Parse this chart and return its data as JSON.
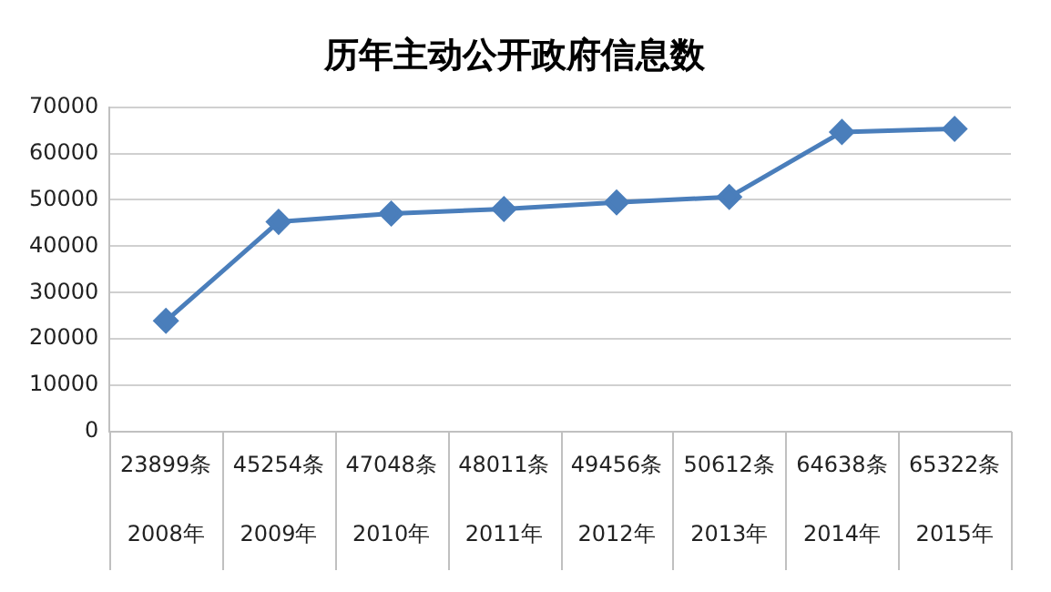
{
  "chart_data": {
    "type": "line",
    "title": "历年主动公开政府信息数",
    "categories": [
      "2008年",
      "2009年",
      "2010年",
      "2011年",
      "2012年",
      "2013年",
      "2014年",
      "2015年"
    ],
    "series": [
      {
        "color": "#4a7ebb",
        "values": [
          23899,
          45254,
          47048,
          48011,
          49456,
          50612,
          64638,
          65322
        ],
        "value_labels": [
          "23899条",
          "45254条",
          "47048条",
          "48011条",
          "49456条",
          "50612条",
          "64638条",
          "65322条"
        ]
      }
    ],
    "ylim": [
      0,
      70000
    ],
    "yticks": [
      0,
      10000,
      20000,
      30000,
      40000,
      50000,
      60000,
      70000
    ],
    "grid": "y",
    "legend": false,
    "marker": "diamond",
    "line_style": "solid"
  }
}
